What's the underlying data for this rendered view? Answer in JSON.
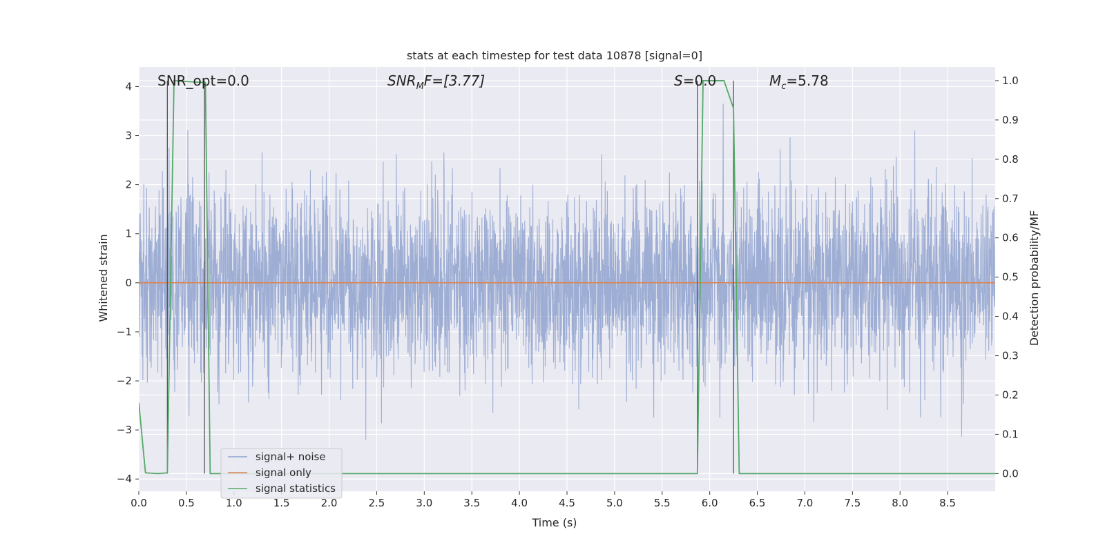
{
  "chart_data": {
    "type": "line",
    "title": "stats at each timestep for test data 10878 [signal=0]",
    "xlabel": "Time (s)",
    "ylabel_left": "Whitened strain",
    "ylabel_right": "Detection probability/MF",
    "xlim": [
      0.0,
      9.0
    ],
    "ylim_left": [
      -4.25,
      4.4
    ],
    "ylim_right": [
      -0.045,
      1.035
    ],
    "x_ticks": [
      "0.0",
      "0.5",
      "1.0",
      "1.5",
      "2.0",
      "2.5",
      "3.0",
      "3.5",
      "4.0",
      "4.5",
      "5.0",
      "5.5",
      "6.0",
      "6.5",
      "7.0",
      "7.5",
      "8.0",
      "8.5"
    ],
    "y_left_ticks": [
      "−4",
      "−3",
      "−2",
      "−1",
      "0",
      "1",
      "2",
      "3",
      "4"
    ],
    "y_right_ticks": [
      "0.0",
      "0.1",
      "0.2",
      "0.3",
      "0.4",
      "0.5",
      "0.6",
      "0.7",
      "0.8",
      "0.9",
      "1.0"
    ],
    "grid": true,
    "legend_position": "lower-left",
    "annotations": {
      "snr_opt": "SNR_opt=0.0",
      "snr_mf_base": "SNR",
      "snr_mf_sub": "M",
      "snr_mf_rest": "F=[3.77]",
      "s_italic": "S",
      "s_rest": "=0.0",
      "mc_base": "M",
      "mc_sub": "c",
      "mc_rest": "=5.78"
    },
    "series": [
      {
        "name": "signal+ noise",
        "color": "#8fa2ce",
        "description_axis": "left",
        "noise_envelope_typical": [
          -1.6,
          1.6
        ],
        "noise_envelope_peaks": [
          -3.9,
          3.65
        ]
      },
      {
        "name": "signal only",
        "color": "#dd8452",
        "axis": "left",
        "x": [
          0.0,
          9.0
        ],
        "y": [
          0.0,
          0.0
        ]
      },
      {
        "name": "signal statistics",
        "color": "#55a868",
        "axis": "right",
        "x": [
          0.0,
          0.07,
          0.2,
          0.3,
          0.37,
          0.7,
          0.75,
          0.8,
          1.0,
          5.87,
          5.93,
          6.15,
          6.25,
          6.31,
          9.0
        ],
        "y": [
          0.18,
          0.002,
          0.0,
          0.002,
          1.0,
          0.995,
          0.0,
          0.0,
          0.0,
          0.0,
          1.0,
          1.0,
          0.93,
          0.0,
          0.0
        ]
      }
    ],
    "vertical_markers": [
      0.3,
      0.69,
      5.87,
      6.25
    ]
  }
}
